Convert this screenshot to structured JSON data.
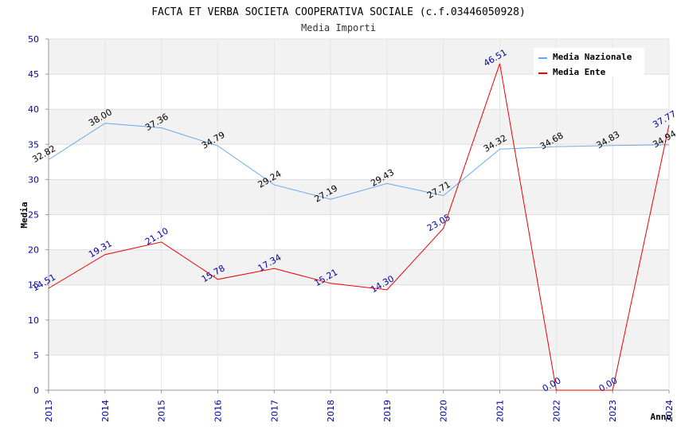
{
  "chart_data": {
    "type": "line",
    "title": "FACTA ET VERBA SOCIETA COOPERATIVA SOCIALE (c.f.03446050928)",
    "subtitle": "Media Importi",
    "xlabel": "Anno",
    "ylabel": "Media",
    "ylim": [
      0,
      50
    ],
    "yticks": [
      "0",
      "5",
      "10",
      "15",
      "20",
      "25",
      "30",
      "35",
      "40",
      "45",
      "50"
    ],
    "categories": [
      "2013",
      "2014",
      "2015",
      "2016",
      "2017",
      "2018",
      "2019",
      "2020",
      "2021",
      "2022",
      "2023",
      "2024"
    ],
    "legend_position": "top-right",
    "grid": true,
    "series": [
      {
        "name": "Media Nazionale",
        "color": "#66aaee",
        "values": [
          32.82,
          38.0,
          37.36,
          34.79,
          29.24,
          27.19,
          29.43,
          27.71,
          34.32,
          34.68,
          34.83,
          34.94
        ],
        "labels": [
          "32.82",
          "38.00",
          "37.36",
          "34.79",
          "29.24",
          "27.19",
          "29.43",
          "27.71",
          "34.32",
          "34.68",
          "34.83",
          "34.94"
        ]
      },
      {
        "name": "Media Ente",
        "color": "#ee0000",
        "values": [
          14.51,
          19.31,
          21.1,
          15.78,
          17.34,
          15.21,
          14.3,
          23.05,
          46.51,
          0.0,
          0.0,
          37.77
        ],
        "labels": [
          "14.51",
          "19.31",
          "21.10",
          "15.78",
          "17.34",
          "15.21",
          "14.30",
          "23.05",
          "46.51",
          "0.00",
          "0.00",
          "37.77"
        ]
      }
    ]
  }
}
